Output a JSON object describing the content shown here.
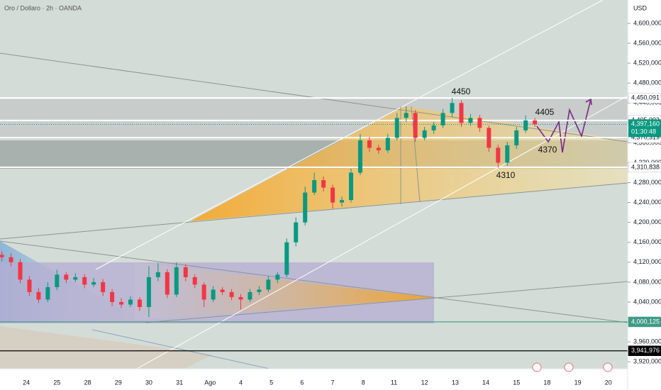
{
  "chart_data": {
    "type": "candlestick",
    "title": "Oro / Dollaro · 2h · OANDA",
    "currency": "USD",
    "countdown": "01:30:48",
    "categories": [
      "24",
      "25",
      "28",
      "29",
      "30",
      "31",
      "Ago",
      "4",
      "5",
      "6",
      "7",
      "8",
      "11",
      "12",
      "13",
      "14",
      "15",
      "18",
      "19",
      "20"
    ],
    "xlim": [
      -0.86,
      19.63
    ],
    "ylim": [
      3906,
      4647
    ],
    "yticks": [
      {
        "value": 4600,
        "label": "4,600,000"
      },
      {
        "value": 4560,
        "label": "4,560,000"
      },
      {
        "value": 4520,
        "label": "4,520,000"
      },
      {
        "value": 4480,
        "label": "4,480,000"
      },
      {
        "value": 4440,
        "label": "4,440,000"
      },
      {
        "value": 4400,
        "label": "4,400,000"
      },
      {
        "value": 4360,
        "label": "4,360,000"
      },
      {
        "value": 4320,
        "label": "4,320,000"
      },
      {
        "value": 4280,
        "label": "4,280,000"
      },
      {
        "value": 4240,
        "label": "4,240,000"
      },
      {
        "value": 4200,
        "label": "4,200,000"
      },
      {
        "value": 4160,
        "label": "4,160,000"
      },
      {
        "value": 4120,
        "label": "4,120,000"
      },
      {
        "value": 4080,
        "label": "4,080,000"
      },
      {
        "value": 4040,
        "label": "4,040,000"
      },
      {
        "value": 4000,
        "label": "4,000,000"
      },
      {
        "value": 3960,
        "label": "3,960,000"
      },
      {
        "value": 3920,
        "label": "3,920,000"
      }
    ],
    "price_labels": [
      {
        "value": 4450.091,
        "label": "4,450,091",
        "color": "#ffffff"
      },
      {
        "value": 4405.003,
        "label": "4,405,003",
        "color": "#ffffff"
      },
      {
        "value": 4370.319,
        "label": "4,370,319",
        "color": "#ffffff"
      },
      {
        "value": 4310.838,
        "label": "4,310,838",
        "color": "#ffffff"
      },
      {
        "value": 4000.125,
        "label": "4,000,125",
        "color": "#3f9a86"
      },
      {
        "value": 3941.976,
        "label": "3,941,976",
        "color": "#000000"
      }
    ],
    "last_price": {
      "value": 4397.16,
      "label": "4,397,160",
      "color": "#089981"
    },
    "annotations": [
      "4450",
      "4405",
      "4370",
      "4310"
    ],
    "up_color": "#089981",
    "down_color": "#f23645",
    "x": [
      -0.8,
      -0.5,
      -0.2,
      0.1,
      0.4,
      0.7,
      1.0,
      1.3,
      1.6,
      1.9,
      2.2,
      2.5,
      2.8,
      3.1,
      3.4,
      3.7,
      4.0,
      4.3,
      4.6,
      4.9,
      5.2,
      5.5,
      5.8,
      6.1,
      6.4,
      6.7,
      7.0,
      7.3,
      7.6,
      7.9,
      8.2,
      8.5,
      8.8,
      9.1,
      9.4,
      9.7,
      10.0,
      10.3,
      10.6,
      10.9,
      11.2,
      11.5,
      11.8,
      12.1,
      12.4,
      12.7,
      13.0,
      13.3,
      13.6,
      13.9,
      14.2,
      14.5,
      14.8,
      15.1,
      15.4,
      15.7,
      16.0,
      16.3,
      16.6
    ],
    "open": [
      4135,
      4130,
      4120,
      4085,
      4060,
      4045,
      4070,
      4095,
      4085,
      4090,
      4075,
      4080,
      4060,
      4040,
      4035,
      4045,
      4030,
      4090,
      4100,
      4055,
      4110,
      4090,
      4075,
      4045,
      4065,
      4060,
      4050,
      4045,
      4060,
      4065,
      4085,
      4095,
      4160,
      4200,
      4260,
      4285,
      4270,
      4240,
      4245,
      4300,
      4365,
      4350,
      4345,
      4370,
      4410,
      4420,
      4370,
      4385,
      4395,
      4420,
      4440,
      4400,
      4410,
      4390,
      4350,
      4320,
      4355,
      4385,
      4405
    ],
    "high": [
      4142,
      4138,
      4127,
      4092,
      4068,
      4080,
      4105,
      4100,
      4098,
      4096,
      4088,
      4086,
      4066,
      4048,
      4052,
      4050,
      4112,
      4118,
      4106,
      4120,
      4116,
      4096,
      4080,
      4072,
      4070,
      4066,
      4056,
      4066,
      4072,
      4092,
      4100,
      4168,
      4210,
      4272,
      4300,
      4292,
      4276,
      4252,
      4308,
      4378,
      4372,
      4356,
      4378,
      4420,
      4433,
      4426,
      4392,
      4402,
      4428,
      4450,
      4446,
      4418,
      4416,
      4395,
      4356,
      4362,
      4392,
      4415,
      4410
    ],
    "low": [
      4122,
      4112,
      4078,
      4052,
      4038,
      4040,
      4064,
      4078,
      4080,
      4068,
      4070,
      4052,
      4032,
      4028,
      4030,
      4022,
      4010,
      4082,
      4048,
      4050,
      4082,
      4068,
      4030,
      4040,
      4054,
      4044,
      4025,
      4040,
      4054,
      4060,
      4078,
      4090,
      4152,
      4194,
      4255,
      4262,
      4228,
      4232,
      4240,
      4295,
      4342,
      4338,
      4340,
      4365,
      4402,
      4362,
      4365,
      4378,
      4390,
      4412,
      4392,
      4394,
      4382,
      4342,
      4310,
      4314,
      4348,
      4380,
      4392
    ],
    "close": [
      4130,
      4120,
      4085,
      4060,
      4045,
      4070,
      4095,
      4085,
      4090,
      4075,
      4080,
      4060,
      4040,
      4035,
      4045,
      4030,
      4090,
      4100,
      4055,
      4110,
      4090,
      4075,
      4045,
      4065,
      4060,
      4050,
      4045,
      4060,
      4065,
      4085,
      4095,
      4160,
      4200,
      4260,
      4285,
      4270,
      4240,
      4245,
      4300,
      4365,
      4350,
      4345,
      4370,
      4410,
      4420,
      4370,
      4385,
      4395,
      4420,
      4440,
      4400,
      4410,
      4390,
      4350,
      4320,
      4355,
      4385,
      4405,
      4397.16
    ]
  }
}
